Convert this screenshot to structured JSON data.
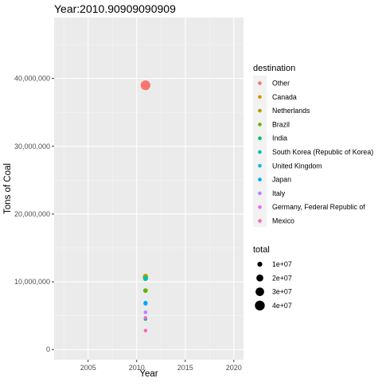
{
  "chart_data": {
    "type": "scatter",
    "title": "Year:2010.90909090909",
    "xlabel": "Year",
    "ylabel": "Tons of Coal",
    "xlim": [
      2001.5,
      2021.0
    ],
    "ylim": [
      -1500000,
      49000000
    ],
    "x_ticks": [
      2005,
      2010,
      2015,
      2020
    ],
    "x_tick_labels": [
      "2005",
      "2010",
      "2015",
      "2020"
    ],
    "y_ticks": [
      0,
      10000000,
      20000000,
      30000000,
      40000000
    ],
    "y_tick_labels": [
      "0",
      "10,000,000",
      "20,000,000",
      "30,000,000",
      "40,000,000"
    ],
    "grid": true,
    "legend_position": "right",
    "color_legend_title": "destination",
    "size_legend_title": "total",
    "size_legend": [
      {
        "label": "1e+07",
        "value": 10000000
      },
      {
        "label": "2e+07",
        "value": 20000000
      },
      {
        "label": "3e+07",
        "value": 30000000
      },
      {
        "label": "4e+07",
        "value": 40000000
      }
    ],
    "series": [
      {
        "name": "Other",
        "color": "#F8766D",
        "x": 2010.90909090909,
        "y": 39000000
      },
      {
        "name": "Canada",
        "color": "#DB8E00",
        "x": 2010.90909090909,
        "y": 10800000
      },
      {
        "name": "Netherlands",
        "color": "#AEA200",
        "x": 2010.90909090909,
        "y": 10700000
      },
      {
        "name": "Brazil",
        "color": "#64B200",
        "x": 2010.90909090909,
        "y": 8700000
      },
      {
        "name": "India",
        "color": "#00BD5C",
        "x": 2010.90909090909,
        "y": 4500000
      },
      {
        "name": "South Korea (Republic of Korea)",
        "color": "#00C1A7",
        "x": 2010.90909090909,
        "y": 10500000
      },
      {
        "name": "United Kingdom",
        "color": "#00BADE",
        "x": 2010.90909090909,
        "y": 6900000
      },
      {
        "name": "Japan",
        "color": "#00A6FF",
        "x": 2010.90909090909,
        "y": 6800000
      },
      {
        "name": "Italy",
        "color": "#B385FF",
        "x": 2010.90909090909,
        "y": 5500000
      },
      {
        "name": "Germany, Federal Republic of",
        "color": "#EF67EB",
        "x": 2010.90909090909,
        "y": 4700000
      },
      {
        "name": "Mexico",
        "color": "#FF63B6",
        "x": 2010.90909090909,
        "y": 2800000
      }
    ]
  }
}
